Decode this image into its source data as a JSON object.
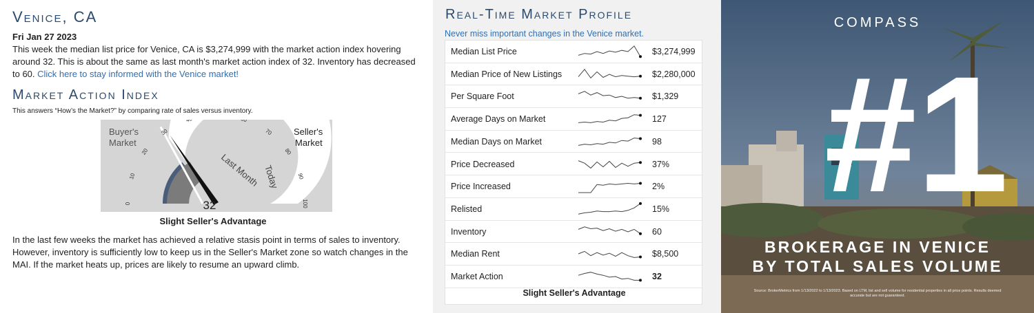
{
  "left": {
    "city_title": "Venice, CA",
    "date": "Fri Jan 27 2023",
    "intro_text": "This week the median list price for Venice, CA is $3,274,999 with the market action index hovering around 32. This is about the same as last month's market action index of 32. Inventory has decreased to 60. ",
    "intro_link": "Click here to stay informed with the Venice market!",
    "mai_title": "Market Action Index",
    "mai_desc": "This answers “How’s the Market?” by comparing rate of sales versus inventory.",
    "gauge": {
      "buyers_label": [
        "Buyer's",
        "Market"
      ],
      "sellers_label": [
        "Seller's",
        "Market"
      ],
      "ticks": [
        "0",
        "10",
        "20",
        "30",
        "40",
        "50",
        "60",
        "70",
        "80",
        "90",
        "100"
      ],
      "last_month_label": "Last Month",
      "today_label": "Today",
      "value": 32,
      "value_label": "32"
    },
    "gauge_caption": "Slight Seller's Advantage",
    "body_text": "In the last few weeks the market has achieved a relative stasis point in terms of sales to inventory. However, inventory is sufficiently low to keep us in the Seller's Market zone so watch changes in the MAI. If the market heats up, prices are likely to resume an upward climb."
  },
  "middle": {
    "title": "Real-Time Market Profile",
    "link": "Never miss important changes in the Venice market.",
    "rows": [
      {
        "label": "Median List Price",
        "value": "$3,274,999",
        "spark": [
          0.2,
          0.35,
          0.3,
          0.5,
          0.35,
          0.55,
          0.45,
          0.6,
          0.5,
          0.95,
          0.1
        ]
      },
      {
        "label": "Median Price of New Listings",
        "value": "$2,280,000",
        "spark": [
          0.3,
          0.9,
          0.2,
          0.7,
          0.25,
          0.5,
          0.3,
          0.4,
          0.35,
          0.3,
          0.35
        ]
      },
      {
        "label": "Per Square Foot",
        "value": "$1,329",
        "spark": [
          0.7,
          0.9,
          0.6,
          0.8,
          0.55,
          0.6,
          0.4,
          0.5,
          0.35,
          0.4,
          0.35
        ]
      },
      {
        "label": "Average Days on Market",
        "value": "127",
        "spark": [
          0.2,
          0.25,
          0.2,
          0.3,
          0.25,
          0.4,
          0.35,
          0.55,
          0.6,
          0.85,
          0.8
        ]
      },
      {
        "label": "Median Days on Market",
        "value": "98",
        "spark": [
          0.2,
          0.3,
          0.25,
          0.35,
          0.3,
          0.45,
          0.4,
          0.6,
          0.55,
          0.8,
          0.75
        ]
      },
      {
        "label": "Price Decreased",
        "value": "37%",
        "spark": [
          0.8,
          0.6,
          0.2,
          0.7,
          0.3,
          0.75,
          0.25,
          0.6,
          0.35,
          0.6,
          0.65
        ]
      },
      {
        "label": "Price Increased",
        "value": "2%",
        "spark": [
          0.0,
          0.0,
          0.0,
          0.65,
          0.6,
          0.7,
          0.65,
          0.7,
          0.75,
          0.7,
          0.75
        ]
      },
      {
        "label": "Relisted",
        "value": "15%",
        "spark": [
          0.1,
          0.2,
          0.25,
          0.35,
          0.3,
          0.3,
          0.35,
          0.3,
          0.4,
          0.6,
          0.95
        ]
      },
      {
        "label": "Inventory",
        "value": "60",
        "spark": [
          0.7,
          0.9,
          0.75,
          0.8,
          0.6,
          0.75,
          0.55,
          0.7,
          0.5,
          0.7,
          0.35
        ]
      },
      {
        "label": "Median Rent",
        "value": "$8,500",
        "spark": [
          0.5,
          0.7,
          0.35,
          0.6,
          0.4,
          0.55,
          0.3,
          0.6,
          0.35,
          0.2,
          0.25
        ]
      },
      {
        "label": "Market Action",
        "value": "32",
        "spark": [
          0.6,
          0.75,
          0.85,
          0.7,
          0.6,
          0.45,
          0.5,
          0.3,
          0.35,
          0.2,
          0.2
        ]
      }
    ],
    "footer": "Slight Seller's Advantage"
  },
  "ad": {
    "brand": "COMPASS",
    "number": "#1",
    "line1": "BROKERAGE IN VENICE",
    "line2": "BY TOTAL SALES VOLUME",
    "source": "Source: BrokerMetrics from 1/13/2022 to 1/13/2023. Based on LTM, list and sell volume for residential properties in all price points. Results deemed accurate but are not guaranteed."
  },
  "colors": {
    "heading": "#2b4a6d",
    "link": "#2f6fb3",
    "gauge_dark": "#4a5d7a",
    "gauge_mid": "#7b7b7b",
    "gauge_bg": "#d5d5d5"
  }
}
